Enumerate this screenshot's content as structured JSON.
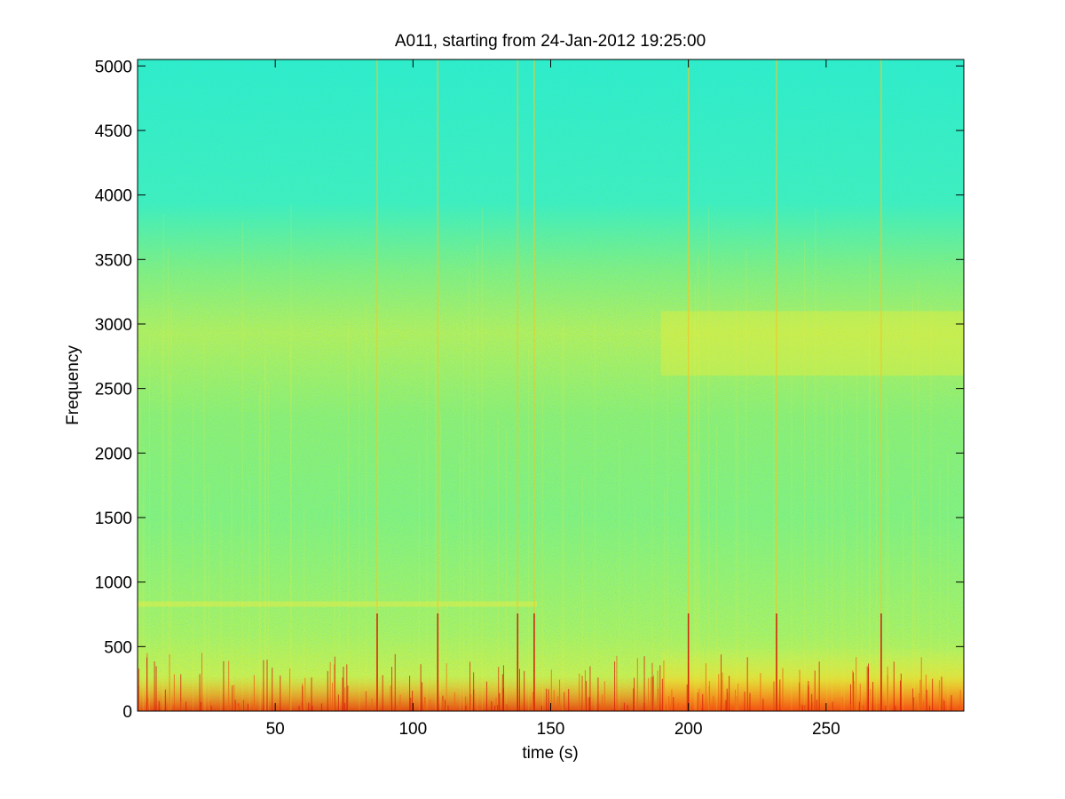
{
  "chart_data": {
    "type": "heatmap",
    "title": "A011, starting from 24-Jan-2012 19:25:00",
    "xlabel": "time (s)",
    "ylabel": "Frequency",
    "xlim": [
      0,
      300
    ],
    "ylim": [
      0,
      5050
    ],
    "xticks": [
      50,
      100,
      150,
      200,
      250
    ],
    "xtick_labels": [
      "50",
      "100",
      "150",
      "200",
      "250"
    ],
    "yticks": [
      0,
      500,
      1000,
      1500,
      2000,
      2500,
      3000,
      3500,
      4000,
      4500,
      5000
    ],
    "ytick_labels": [
      "0",
      "500",
      "1000",
      "1500",
      "2000",
      "2500",
      "3000",
      "3500",
      "4000",
      "4500",
      "5000"
    ],
    "colormap": "jet",
    "grid": false,
    "legend": "none",
    "colors": {
      "background_cyan": "#2ef0c8",
      "mid_green": "#7cf07a",
      "yellow": "#f0f030",
      "red": "#e02010"
    },
    "broadband_transients_s": [
      87,
      109,
      138,
      144,
      200,
      232,
      270
    ]
  }
}
